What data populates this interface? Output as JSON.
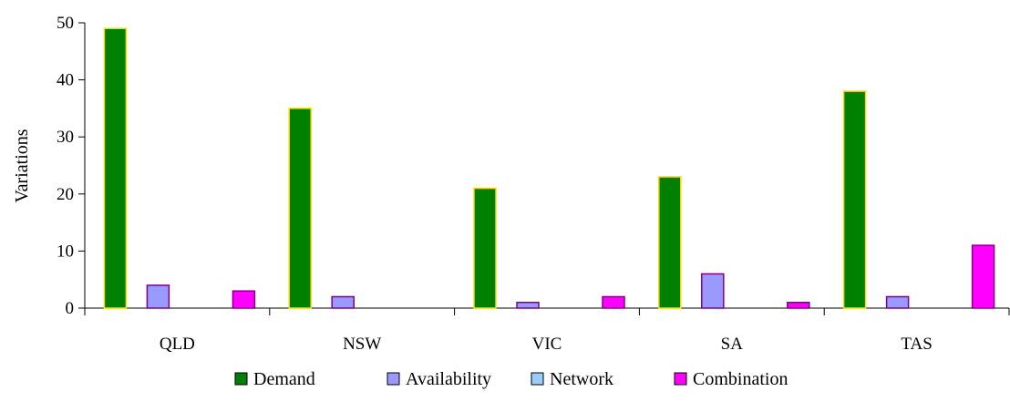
{
  "chart_data": {
    "type": "bar",
    "title": "",
    "xlabel": "",
    "ylabel": "Variations",
    "ylim": [
      0,
      50
    ],
    "yticks": [
      0,
      10,
      20,
      30,
      40,
      50
    ],
    "categories": [
      "QLD",
      "NSW",
      "VIC",
      "SA",
      "TAS"
    ],
    "series": [
      {
        "name": "Demand",
        "values": [
          49,
          35,
          21,
          23,
          38
        ],
        "color": "#008000",
        "stroke": "#ffd700"
      },
      {
        "name": "Availability",
        "values": [
          4,
          2,
          1,
          6,
          2
        ],
        "color": "#9999ff",
        "stroke": "#800080"
      },
      {
        "name": "Network",
        "values": [
          0,
          0,
          0,
          0,
          0
        ],
        "color": "#99ccff",
        "stroke": "#000080"
      },
      {
        "name": "Combination",
        "values": [
          3,
          0,
          2,
          1,
          11
        ],
        "color": "#ff00ff",
        "stroke": "#800080"
      }
    ],
    "grid": false,
    "legend_position": "bottom"
  }
}
